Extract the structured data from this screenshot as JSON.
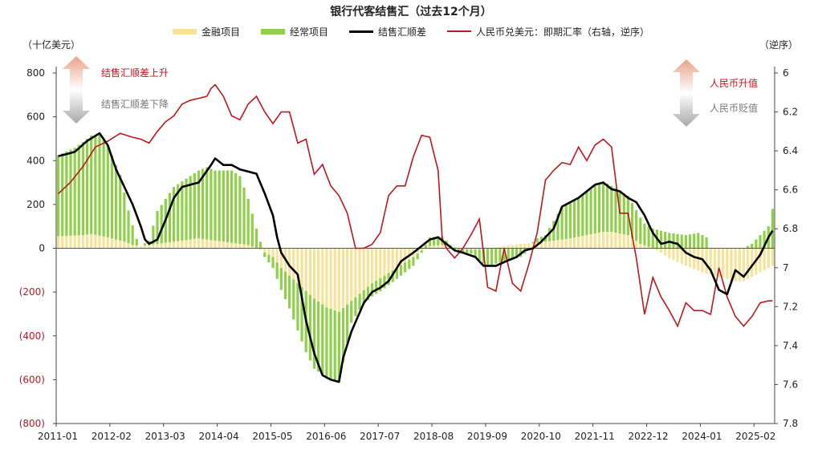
{
  "colors": {
    "financial": "#f7e29a",
    "current": "#8fcf4a",
    "net": "#000000",
    "rmb": "#c0161e",
    "axis_text": "#222222",
    "neg_text": "#c0161e",
    "up_arrow": "#e8a28a",
    "down_arrow": "#a8a8a8"
  },
  "annotations": {
    "left_up": "结售汇顺差上升",
    "left_down": "结售汇顺差下降",
    "right_up": "人民币升值",
    "right_down": "人民币贬值",
    "up_arrow_icon": "up-arrow-icon",
    "down_arrow_icon": "down-arrow-icon"
  },
  "chart_data": {
    "type": "bar+line",
    "title": "银行代客结售汇（过去12个月）",
    "ylabel_left": "（十亿美元）",
    "ylabel_right": "（逆序）",
    "legend": [
      "金融项目",
      "经常项目",
      "结售汇顺差",
      "人民币兑美元：即期汇率（右轴，逆序）"
    ],
    "x_ticks": [
      "2011-01",
      "2012-02",
      "2013-03",
      "2014-04",
      "2015-05",
      "2016-06",
      "2017-07",
      "2018-08",
      "2019-09",
      "2020-10",
      "2021-11",
      "2022-12",
      "2024-01",
      "2025-02"
    ],
    "x_tick_index": [
      0,
      13,
      26,
      39,
      52,
      65,
      78,
      91,
      104,
      117,
      130,
      143,
      156,
      169
    ],
    "n_months": 174,
    "y_left_ticks": [
      "800",
      "600",
      "400",
      "200",
      "0",
      "(200)",
      "(400)",
      "(600)",
      "(800)"
    ],
    "y_left_values": [
      800,
      600,
      400,
      200,
      0,
      -200,
      -400,
      -600,
      -800
    ],
    "ylim_left": [
      -800,
      800
    ],
    "y_right_ticks": [
      "6",
      "6.2",
      "6.4",
      "6.6",
      "6.8",
      "7",
      "7.2",
      "7.4",
      "7.6",
      "7.8"
    ],
    "y_right_values": [
      6,
      6.2,
      6.4,
      6.6,
      6.8,
      7,
      7.2,
      7.4,
      7.6,
      7.8
    ],
    "ylim_right_inverted": [
      6,
      7.8
    ],
    "financial_keypoints": [
      [
        0,
        55
      ],
      [
        6,
        60
      ],
      [
        8,
        65
      ],
      [
        12,
        50
      ],
      [
        16,
        30
      ],
      [
        18,
        15
      ],
      [
        20,
        10
      ],
      [
        24,
        20
      ],
      [
        30,
        35
      ],
      [
        34,
        45
      ],
      [
        40,
        30
      ],
      [
        46,
        15
      ],
      [
        48,
        0
      ],
      [
        50,
        -20
      ],
      [
        52,
        -40
      ],
      [
        54,
        -90
      ],
      [
        58,
        -160
      ],
      [
        62,
        -230
      ],
      [
        65,
        -270
      ],
      [
        68,
        -290
      ],
      [
        71,
        -240
      ],
      [
        76,
        -160
      ],
      [
        82,
        -90
      ],
      [
        86,
        -40
      ],
      [
        88,
        -10
      ],
      [
        90,
        10
      ],
      [
        93,
        15
      ],
      [
        96,
        5
      ],
      [
        98,
        -5
      ],
      [
        102,
        -5
      ],
      [
        106,
        0
      ],
      [
        108,
        10
      ],
      [
        112,
        20
      ],
      [
        116,
        25
      ],
      [
        118,
        30
      ],
      [
        124,
        45
      ],
      [
        128,
        60
      ],
      [
        132,
        75
      ],
      [
        134,
        75
      ],
      [
        138,
        60
      ],
      [
        141,
        20
      ],
      [
        144,
        0
      ],
      [
        146,
        -20
      ],
      [
        148,
        -45
      ],
      [
        152,
        -80
      ],
      [
        156,
        -110
      ],
      [
        158,
        -120
      ],
      [
        162,
        -140
      ],
      [
        164,
        -150
      ],
      [
        166,
        -150
      ],
      [
        170,
        -110
      ],
      [
        173,
        -80
      ]
    ],
    "current_keypoints": [
      [
        0,
        370
      ],
      [
        4,
        400
      ],
      [
        8,
        450
      ],
      [
        10,
        460
      ],
      [
        12,
        420
      ],
      [
        15,
        300
      ],
      [
        17,
        150
      ],
      [
        19,
        30
      ],
      [
        20,
        0
      ],
      [
        22,
        20
      ],
      [
        24,
        150
      ],
      [
        28,
        250
      ],
      [
        32,
        290
      ],
      [
        36,
        330
      ],
      [
        38,
        320
      ],
      [
        42,
        330
      ],
      [
        44,
        310
      ],
      [
        46,
        210
      ],
      [
        48,
        90
      ],
      [
        49,
        30
      ],
      [
        50,
        -20
      ],
      [
        52,
        -50
      ],
      [
        56,
        -150
      ],
      [
        60,
        -280
      ],
      [
        62,
        -320
      ],
      [
        65,
        -320
      ],
      [
        68,
        -320
      ],
      [
        71,
        -100
      ],
      [
        74,
        -60
      ],
      [
        78,
        -60
      ],
      [
        82,
        -50
      ],
      [
        86,
        -40
      ],
      [
        88,
        -10
      ],
      [
        90,
        40
      ],
      [
        93,
        40
      ],
      [
        96,
        -10
      ],
      [
        100,
        -20
      ],
      [
        104,
        -80
      ],
      [
        108,
        -60
      ],
      [
        112,
        -40
      ],
      [
        114,
        -10
      ],
      [
        116,
        20
      ],
      [
        118,
        30
      ],
      [
        122,
        150
      ],
      [
        124,
        160
      ],
      [
        126,
        180
      ],
      [
        128,
        200
      ],
      [
        130,
        220
      ],
      [
        132,
        230
      ],
      [
        134,
        210
      ],
      [
        138,
        180
      ],
      [
        142,
        100
      ],
      [
        144,
        90
      ],
      [
        146,
        80
      ],
      [
        148,
        70
      ],
      [
        152,
        60
      ],
      [
        155,
        70
      ],
      [
        157,
        50
      ],
      [
        158,
        0
      ],
      [
        162,
        0
      ],
      [
        166,
        0
      ],
      [
        168,
        20
      ],
      [
        170,
        60
      ],
      [
        172,
        100
      ],
      [
        173,
        180
      ]
    ],
    "net_keypoints": [
      [
        0,
        420
      ],
      [
        4,
        440
      ],
      [
        7,
        490
      ],
      [
        10,
        525
      ],
      [
        12,
        470
      ],
      [
        14,
        360
      ],
      [
        16,
        280
      ],
      [
        18,
        200
      ],
      [
        20,
        100
      ],
      [
        21,
        40
      ],
      [
        22,
        20
      ],
      [
        24,
        40
      ],
      [
        26,
        130
      ],
      [
        28,
        230
      ],
      [
        30,
        280
      ],
      [
        34,
        300
      ],
      [
        37,
        380
      ],
      [
        38,
        410
      ],
      [
        40,
        380
      ],
      [
        42,
        380
      ],
      [
        44,
        360
      ],
      [
        46,
        350
      ],
      [
        48,
        340
      ],
      [
        50,
        250
      ],
      [
        52,
        150
      ],
      [
        53,
        50
      ],
      [
        54,
        -20
      ],
      [
        56,
        -80
      ],
      [
        58,
        -120
      ],
      [
        60,
        -330
      ],
      [
        62,
        -480
      ],
      [
        64,
        -580
      ],
      [
        66,
        -600
      ],
      [
        68,
        -610
      ],
      [
        69,
        -500
      ],
      [
        71,
        -380
      ],
      [
        74,
        -250
      ],
      [
        76,
        -200
      ],
      [
        78,
        -180
      ],
      [
        80,
        -150
      ],
      [
        83,
        -60
      ],
      [
        86,
        -20
      ],
      [
        88,
        10
      ],
      [
        90,
        40
      ],
      [
        92,
        50
      ],
      [
        94,
        20
      ],
      [
        96,
        -10
      ],
      [
        98,
        -20
      ],
      [
        101,
        -40
      ],
      [
        103,
        -80
      ],
      [
        106,
        -80
      ],
      [
        109,
        -55
      ],
      [
        111,
        -40
      ],
      [
        113,
        -10
      ],
      [
        115,
        0
      ],
      [
        117,
        30
      ],
      [
        120,
        90
      ],
      [
        122,
        190
      ],
      [
        124,
        210
      ],
      [
        126,
        230
      ],
      [
        128,
        260
      ],
      [
        130,
        290
      ],
      [
        132,
        300
      ],
      [
        134,
        270
      ],
      [
        136,
        260
      ],
      [
        138,
        230
      ],
      [
        140,
        210
      ],
      [
        142,
        150
      ],
      [
        144,
        70
      ],
      [
        146,
        20
      ],
      [
        148,
        30
      ],
      [
        150,
        20
      ],
      [
        152,
        -20
      ],
      [
        154,
        -40
      ],
      [
        156,
        -50
      ],
      [
        158,
        -100
      ],
      [
        160,
        -190
      ],
      [
        162,
        -210
      ],
      [
        164,
        -100
      ],
      [
        166,
        -130
      ],
      [
        168,
        -80
      ],
      [
        170,
        -30
      ],
      [
        172,
        50
      ],
      [
        173,
        80
      ]
    ],
    "rmb_keypoints": [
      [
        0,
        6.62
      ],
      [
        3,
        6.56
      ],
      [
        6,
        6.48
      ],
      [
        9,
        6.38
      ],
      [
        12,
        6.35
      ],
      [
        15,
        6.31
      ],
      [
        18,
        6.33
      ],
      [
        20,
        6.34
      ],
      [
        22,
        6.36
      ],
      [
        24,
        6.3
      ],
      [
        26,
        6.25
      ],
      [
        28,
        6.22
      ],
      [
        30,
        6.16
      ],
      [
        32,
        6.14
      ],
      [
        34,
        6.13
      ],
      [
        36,
        6.12
      ],
      [
        37,
        6.08
      ],
      [
        38,
        6.06
      ],
      [
        40,
        6.12
      ],
      [
        42,
        6.22
      ],
      [
        44,
        6.24
      ],
      [
        46,
        6.16
      ],
      [
        48,
        6.12
      ],
      [
        50,
        6.2
      ],
      [
        52,
        6.26
      ],
      [
        54,
        6.2
      ],
      [
        56,
        6.2
      ],
      [
        58,
        6.36
      ],
      [
        60,
        6.34
      ],
      [
        62,
        6.52
      ],
      [
        64,
        6.47
      ],
      [
        66,
        6.58
      ],
      [
        68,
        6.63
      ],
      [
        70,
        6.72
      ],
      [
        72,
        6.9
      ],
      [
        74,
        6.9
      ],
      [
        76,
        6.88
      ],
      [
        78,
        6.82
      ],
      [
        80,
        6.63
      ],
      [
        82,
        6.58
      ],
      [
        84,
        6.58
      ],
      [
        86,
        6.43
      ],
      [
        88,
        6.32
      ],
      [
        90,
        6.33
      ],
      [
        92,
        6.5
      ],
      [
        93,
        6.85
      ],
      [
        94,
        6.9
      ],
      [
        96,
        6.95
      ],
      [
        98,
        6.9
      ],
      [
        100,
        6.83
      ],
      [
        102,
        6.75
      ],
      [
        104,
        7.1
      ],
      [
        106,
        7.12
      ],
      [
        108,
        6.9
      ],
      [
        110,
        7.08
      ],
      [
        112,
        7.12
      ],
      [
        114,
        6.98
      ],
      [
        116,
        6.82
      ],
      [
        118,
        6.55
      ],
      [
        120,
        6.5
      ],
      [
        122,
        6.46
      ],
      [
        124,
        6.47
      ],
      [
        126,
        6.38
      ],
      [
        128,
        6.45
      ],
      [
        130,
        6.37
      ],
      [
        132,
        6.34
      ],
      [
        134,
        6.38
      ],
      [
        136,
        6.72
      ],
      [
        138,
        6.72
      ],
      [
        140,
        6.95
      ],
      [
        142,
        7.24
      ],
      [
        144,
        7.05
      ],
      [
        146,
        7.15
      ],
      [
        148,
        7.22
      ],
      [
        150,
        7.3
      ],
      [
        152,
        7.18
      ],
      [
        154,
        7.22
      ],
      [
        156,
        7.22
      ],
      [
        158,
        7.24
      ],
      [
        160,
        7.0
      ],
      [
        162,
        7.15
      ],
      [
        164,
        7.25
      ],
      [
        166,
        7.3
      ],
      [
        168,
        7.25
      ],
      [
        170,
        7.18
      ],
      [
        172,
        7.17
      ],
      [
        173,
        7.17
      ]
    ]
  }
}
